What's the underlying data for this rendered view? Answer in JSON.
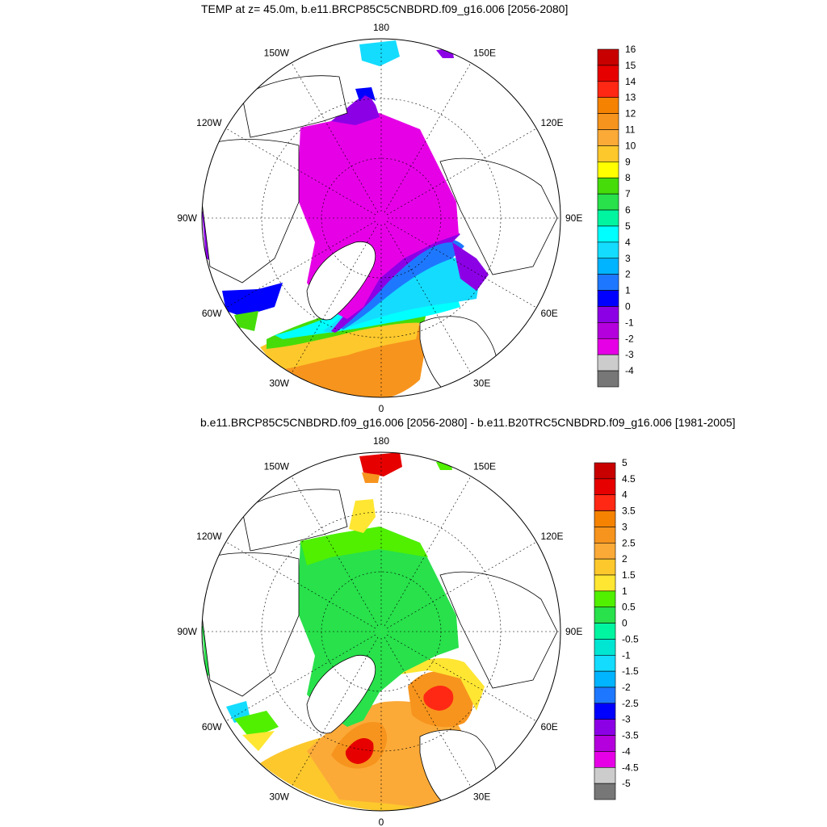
{
  "panels": [
    {
      "title": "TEMP at z=  45.0m, b.e11.BRCP85C5CNBDRD.f09_g16.006 [2056-2080]",
      "colorbar_labels": [
        "16",
        "15",
        "14",
        "13",
        "12",
        "11",
        "10",
        "9",
        "8",
        "7",
        "6",
        "5",
        "4",
        "3",
        "2",
        "1",
        "0",
        "-1",
        "-2",
        "-3",
        "-4"
      ],
      "colorbar_colors": [
        "#c80000",
        "#e60000",
        "#ff2814",
        "#f58200",
        "#f7941d",
        "#fbaa38",
        "#fdc82c",
        "#ffff00",
        "#46dc0a",
        "#28e14b",
        "#00f5a0",
        "#00ffff",
        "#14dcff",
        "#00b4ff",
        "#1e78ff",
        "#0000ff",
        "#8c00e6",
        "#b400dc",
        "#e600e6",
        "#cccccc",
        "#777777"
      ]
    },
    {
      "title": "b.e11.BRCP85C5CNBDRD.f09_g16.006 [2056-2080] - b.e11.B20TRC5CNBDRD.f09_g16.006 [1981-2005]",
      "colorbar_labels": [
        "5",
        "4.5",
        "4",
        "3.5",
        "3",
        "2.5",
        "2",
        "1.5",
        "1",
        "0.5",
        "0",
        "-0.5",
        "-1",
        "-1.5",
        "-2",
        "-2.5",
        "-3",
        "-3.5",
        "-4",
        "-4.5",
        "-5"
      ],
      "colorbar_colors": [
        "#c80000",
        "#e60000",
        "#ff2814",
        "#f58200",
        "#f7941d",
        "#fbaa38",
        "#fdc82c",
        "#ffe632",
        "#50f000",
        "#28e14b",
        "#00f5a0",
        "#00e6d2",
        "#14dcff",
        "#00b4ff",
        "#1e78ff",
        "#0000ff",
        "#8c00e6",
        "#b400dc",
        "#e600e6",
        "#cccccc",
        "#777777"
      ]
    }
  ],
  "lon_labels": [
    "180",
    "150E",
    "120E",
    "90E",
    "60E",
    "30E",
    "0",
    "30W",
    "60W",
    "90W",
    "120W",
    "150W"
  ],
  "lon_values": [
    180,
    150,
    120,
    90,
    60,
    30,
    0,
    -30,
    -60,
    -90,
    -120,
    -150
  ],
  "land_color": "#ffffff",
  "background_color": "#ffffff"
}
